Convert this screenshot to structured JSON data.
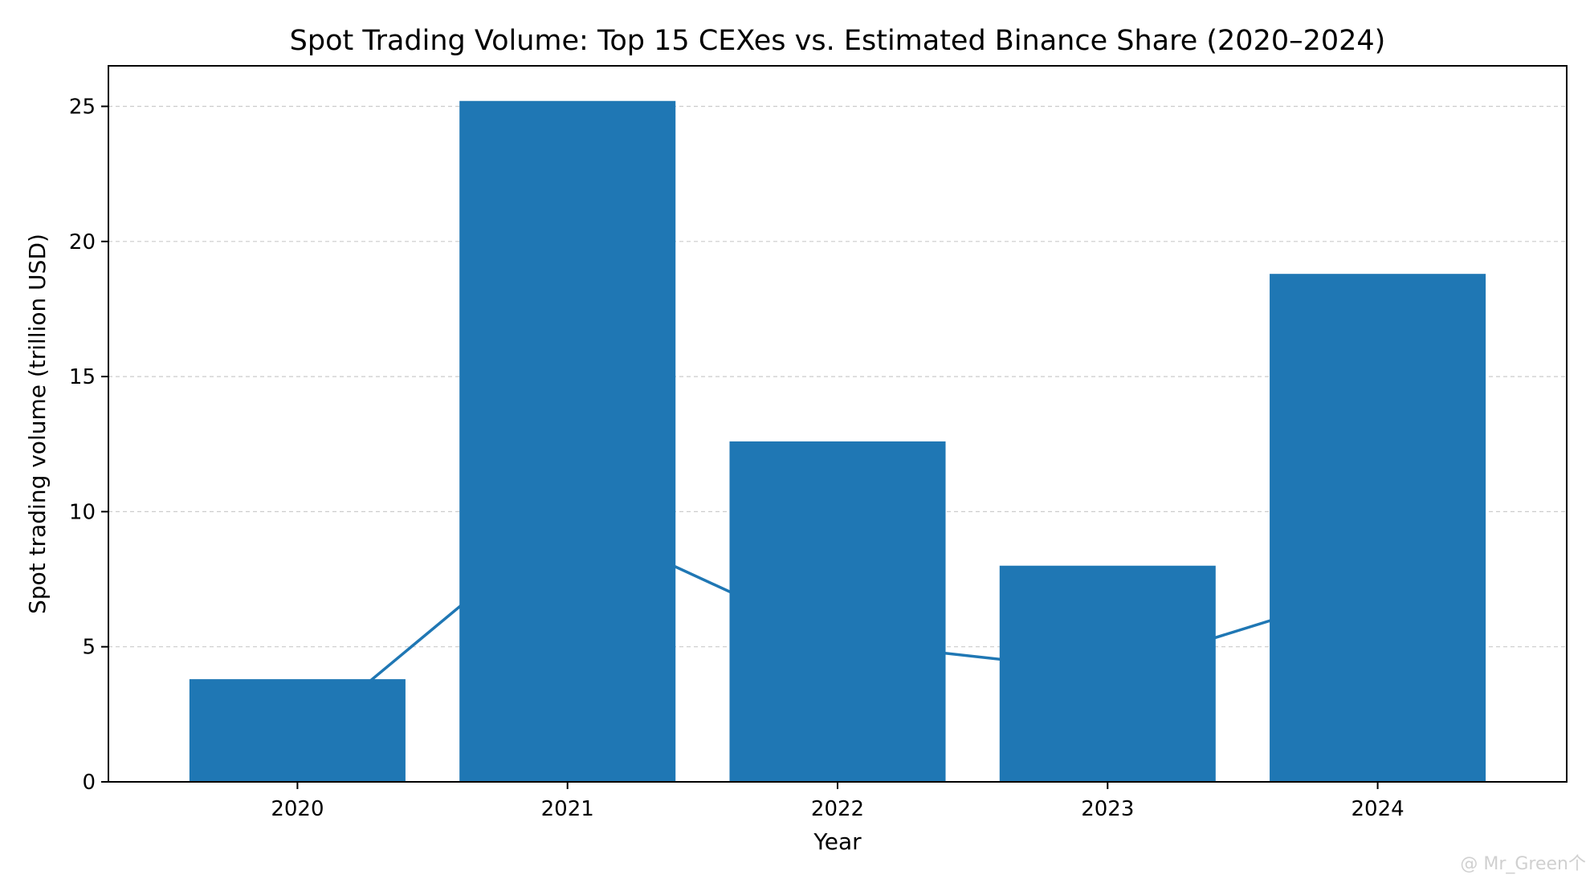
{
  "chart_data": {
    "type": "bar",
    "title": "Spot Trading Volume: Top 15 CEXes vs. Estimated Binance Share (2020–2024)",
    "xlabel": "Year",
    "ylabel": "Spot trading volume (trillion USD)",
    "categories": [
      "2020",
      "2021",
      "2022",
      "2023",
      "2024"
    ],
    "series": [
      {
        "kind": "bar",
        "values": [
          3.8,
          25.2,
          12.6,
          8.0,
          18.8
        ],
        "color": "#1f77b4"
      },
      {
        "kind": "line",
        "values": [
          1.5,
          9.8,
          5.2,
          4.1,
          7.2
        ],
        "color": "#1f77b4"
      }
    ],
    "ylim": [
      0,
      26.5
    ],
    "yticks": [
      0,
      5,
      10,
      15,
      20,
      25
    ],
    "grid": "horizontal-dashed",
    "legend": "none"
  },
  "watermark": "@ Mr_Green个"
}
